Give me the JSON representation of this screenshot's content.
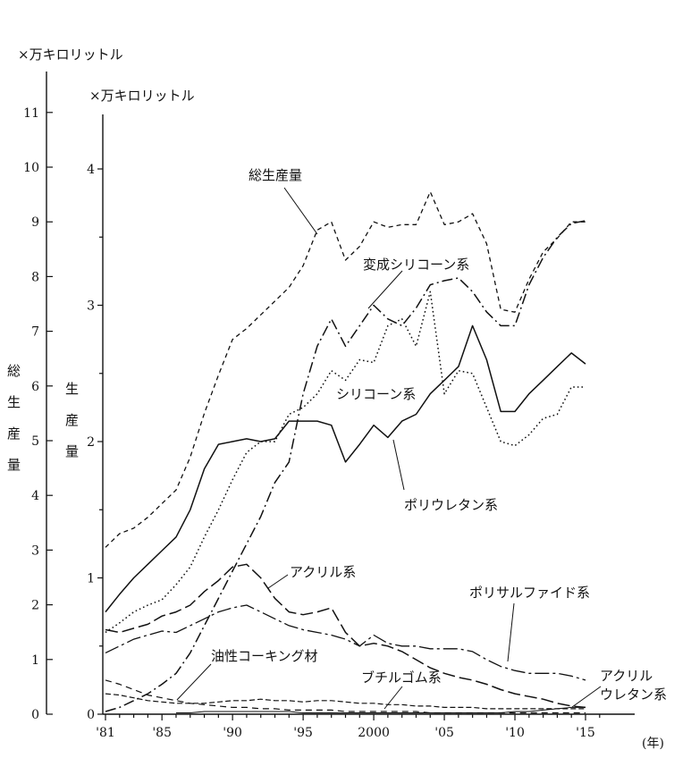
{
  "chart_data": {
    "type": "line",
    "left_axis": {
      "unit": "×万キロリットル",
      "title_chars": [
        "総",
        "生",
        "産",
        "量"
      ],
      "ticks": [
        0,
        1,
        2,
        3,
        4,
        5,
        6,
        7,
        8,
        9,
        10,
        11
      ],
      "ylim": [
        0,
        11
      ]
    },
    "right_axis": {
      "unit": "×万キロリットル",
      "title_chars": [
        "生",
        "産",
        "量"
      ],
      "ticks": [
        0,
        1,
        2,
        3,
        4
      ],
      "ylim": [
        0,
        4.5
      ]
    },
    "x_axis": {
      "unit": "(年)",
      "ticks": [
        {
          "year": 1981,
          "label": "'81"
        },
        {
          "year": 1985,
          "label": "'85"
        },
        {
          "year": 1990,
          "label": "'90"
        },
        {
          "year": 1995,
          "label": "'95"
        },
        {
          "year": 2000,
          "label": "2000"
        },
        {
          "year": 2005,
          "label": "'05"
        },
        {
          "year": 2010,
          "label": "'10"
        },
        {
          "year": 2015,
          "label": "'15"
        }
      ],
      "xlim": [
        1981,
        2016
      ]
    },
    "series": [
      {
        "name": "総生産量",
        "axis": "left",
        "style": "short-dash",
        "years": [
          1981,
          1982,
          1983,
          1984,
          1985,
          1986,
          1987,
          1988,
          1989,
          1990,
          1991,
          1992,
          1993,
          1994,
          1995,
          1996,
          1997,
          1998,
          1999,
          2000,
          2001,
          2002,
          2003,
          2004,
          2005,
          2006,
          2007,
          2008,
          2009,
          2010,
          2011,
          2012,
          2013,
          2014,
          2015
        ],
        "values": [
          3.05,
          3.3,
          3.4,
          3.6,
          3.85,
          4.1,
          4.7,
          5.5,
          6.2,
          6.85,
          7.05,
          7.3,
          7.55,
          7.8,
          8.2,
          8.85,
          9.0,
          8.3,
          8.55,
          9.0,
          8.9,
          8.95,
          8.95,
          9.55,
          8.95,
          9.0,
          9.15,
          8.6,
          7.4,
          7.35,
          7.95,
          8.45,
          8.7,
          9.0,
          9.0
        ]
      },
      {
        "name": "変成シリコーン系",
        "axis": "right",
        "style": "solid",
        "years": [
          1981,
          1982,
          1983,
          1984,
          1985,
          1986,
          1987,
          1988,
          1989,
          1990,
          1991,
          1992,
          1993,
          1994,
          1995,
          1996,
          1997,
          1998,
          1999,
          2000,
          2001,
          2002,
          2003,
          2004,
          2005,
          2006,
          2007,
          2008,
          2009,
          2010,
          2011,
          2012,
          2013,
          2014,
          2015
        ],
        "values": [
          0.75,
          0.88,
          1.0,
          1.1,
          1.2,
          1.3,
          1.5,
          1.8,
          1.98,
          2.0,
          2.02,
          2.0,
          2.02,
          2.15,
          2.15,
          2.15,
          2.12,
          1.85,
          1.98,
          2.12,
          2.03,
          2.15,
          2.2,
          2.35,
          2.45,
          2.55,
          2.85,
          2.6,
          2.22,
          2.22,
          2.35,
          2.45,
          2.55,
          2.65,
          2.57
        ]
      },
      {
        "name": "シリコーン系",
        "axis": "right",
        "style": "dotted",
        "years": [
          1981,
          1982,
          1983,
          1984,
          1985,
          1986,
          1987,
          1988,
          1989,
          1990,
          1991,
          1992,
          1993,
          1994,
          1995,
          1996,
          1997,
          1998,
          1999,
          2000,
          2001,
          2002,
          2003,
          2004,
          2005,
          2006,
          2007,
          2008,
          2009,
          2010,
          2011,
          2012,
          2013,
          2014,
          2015
        ],
        "values": [
          0.6,
          0.67,
          0.75,
          0.8,
          0.84,
          0.95,
          1.08,
          1.3,
          1.5,
          1.72,
          1.92,
          2.0,
          2.0,
          2.2,
          2.25,
          2.35,
          2.52,
          2.45,
          2.6,
          2.58,
          2.85,
          2.9,
          2.7,
          3.1,
          2.35,
          2.52,
          2.5,
          2.25,
          2.0,
          1.97,
          2.05,
          2.17,
          2.2,
          2.4,
          2.4
        ]
      },
      {
        "name": "ポリウレタン系",
        "axis": "right",
        "style": "dash-dot",
        "years": [
          1981,
          1982,
          1983,
          1984,
          1985,
          1986,
          1987,
          1988,
          1989,
          1990,
          1991,
          1992,
          1993,
          1994,
          1995,
          1996,
          1997,
          1998,
          1999,
          2000,
          2001,
          2002,
          2003,
          2004,
          2005,
          2006,
          2007,
          2008,
          2009,
          2010,
          2011,
          2012,
          2013,
          2014,
          2015
        ],
        "values": [
          0.02,
          0.05,
          0.1,
          0.15,
          0.22,
          0.3,
          0.45,
          0.65,
          0.85,
          1.05,
          1.25,
          1.45,
          1.7,
          1.85,
          2.35,
          2.7,
          2.9,
          2.7,
          2.85,
          3.0,
          2.9,
          2.85,
          2.98,
          3.15,
          3.18,
          3.2,
          3.1,
          2.95,
          2.85,
          2.85,
          3.15,
          3.35,
          3.5,
          3.6,
          3.62
        ]
      },
      {
        "name": "アクリル系",
        "axis": "right",
        "style": "long-dash",
        "years": [
          1981,
          1982,
          1983,
          1984,
          1985,
          1986,
          1987,
          1988,
          1989,
          1990,
          1991,
          1992,
          1993,
          1994,
          1995,
          1996,
          1997,
          1998,
          1999,
          2000,
          2001,
          2002,
          2003,
          2004,
          2005,
          2006,
          2007,
          2008,
          2009,
          2010,
          2011,
          2012,
          2013,
          2014,
          2015
        ],
        "values": [
          0.62,
          0.6,
          0.63,
          0.66,
          0.72,
          0.75,
          0.8,
          0.9,
          0.98,
          1.08,
          1.1,
          1.0,
          0.85,
          0.75,
          0.73,
          0.75,
          0.78,
          0.6,
          0.5,
          0.52,
          0.5,
          0.46,
          0.4,
          0.34,
          0.3,
          0.27,
          0.25,
          0.22,
          0.18,
          0.15,
          0.13,
          0.11,
          0.08,
          0.06,
          0.05
        ]
      },
      {
        "name": "ポリサルファイド系",
        "axis": "right",
        "style": "dash-dot-long",
        "years": [
          1981,
          1982,
          1983,
          1984,
          1985,
          1986,
          1987,
          1988,
          1989,
          1990,
          1991,
          1992,
          1993,
          1994,
          1995,
          1996,
          1997,
          1998,
          1999,
          2000,
          2001,
          2002,
          2003,
          2004,
          2005,
          2006,
          2007,
          2008,
          2009,
          2010,
          2011,
          2012,
          2013,
          2014,
          2015
        ],
        "values": [
          0.45,
          0.5,
          0.55,
          0.58,
          0.61,
          0.6,
          0.65,
          0.7,
          0.75,
          0.78,
          0.8,
          0.75,
          0.7,
          0.65,
          0.62,
          0.6,
          0.58,
          0.55,
          0.5,
          0.58,
          0.52,
          0.5,
          0.5,
          0.48,
          0.48,
          0.48,
          0.46,
          0.4,
          0.35,
          0.32,
          0.3,
          0.3,
          0.3,
          0.28,
          0.25
        ]
      },
      {
        "name": "油性コーキング材",
        "axis": "right",
        "style": "dashed",
        "years": [
          1981,
          1982,
          1983,
          1984,
          1985,
          1986,
          1987,
          1988,
          1989,
          1990,
          1991,
          1992,
          1993,
          1994,
          1995,
          1996,
          1997,
          1998,
          1999,
          2000,
          2001,
          2002,
          2003,
          2004,
          2005,
          2006,
          2007,
          2008,
          2009,
          2010,
          2011,
          2012,
          2013,
          2014,
          2015
        ],
        "values": [
          0.25,
          0.22,
          0.18,
          0.14,
          0.12,
          0.1,
          0.08,
          0.07,
          0.06,
          0.05,
          0.05,
          0.04,
          0.04,
          0.03,
          0.03,
          0.03,
          0.03,
          0.02,
          0.02,
          0.02,
          0.02,
          0.02,
          0.02,
          0.01,
          0.01,
          0.01,
          0.01,
          0.01,
          0.01,
          0.01,
          0.01,
          0.01,
          0.01,
          0.01,
          0.01
        ]
      },
      {
        "name": "ブチルゴム系",
        "axis": "right",
        "style": "fine-dash",
        "years": [
          1981,
          1982,
          1983,
          1984,
          1985,
          1986,
          1987,
          1988,
          1989,
          1990,
          1991,
          1992,
          1993,
          1994,
          1995,
          1996,
          1997,
          1998,
          1999,
          2000,
          2001,
          2002,
          2003,
          2004,
          2005,
          2006,
          2007,
          2008,
          2009,
          2010,
          2011,
          2012,
          2013,
          2014,
          2015
        ],
        "values": [
          0.15,
          0.14,
          0.12,
          0.1,
          0.09,
          0.08,
          0.08,
          0.08,
          0.09,
          0.1,
          0.1,
          0.11,
          0.1,
          0.1,
          0.09,
          0.1,
          0.1,
          0.09,
          0.08,
          0.08,
          0.07,
          0.07,
          0.06,
          0.06,
          0.05,
          0.05,
          0.05,
          0.04,
          0.04,
          0.04,
          0.04,
          0.04,
          0.04,
          0.04,
          0.04
        ]
      },
      {
        "name": "アクリルウレタン系",
        "label_lines": [
          "アクリル",
          "ウレタン系"
        ],
        "axis": "right",
        "style": "solid-thin",
        "years": [
          1986,
          1987,
          1988,
          1989,
          1990,
          1991,
          1992,
          1993,
          1994,
          1995,
          1996,
          1997,
          1998,
          1999,
          2000,
          2001,
          2002,
          2003,
          2004,
          2005,
          2006,
          2007,
          2008,
          2009,
          2010,
          2011,
          2012,
          2013,
          2014,
          2015
        ],
        "values": [
          0.01,
          0.01,
          0.02,
          0.02,
          0.02,
          0.02,
          0.02,
          0.02,
          0.02,
          0.01,
          0.01,
          0.01,
          0.01,
          0.01,
          0.01,
          0.01,
          0.01,
          0.01,
          0.01,
          0.01,
          0.01,
          0.01,
          0.01,
          0.01,
          0.02,
          0.02,
          0.03,
          0.04,
          0.05,
          0.05
        ]
      }
    ]
  }
}
